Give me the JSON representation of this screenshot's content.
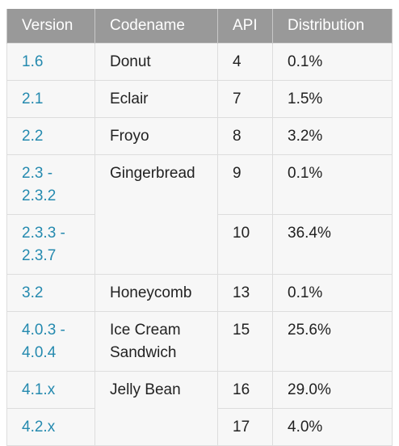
{
  "headers": {
    "version": "Version",
    "codename": "Codename",
    "api": "API",
    "distribution": "Distribution"
  },
  "rows": [
    {
      "version": "1.6",
      "codename": "Donut",
      "api": "4",
      "distribution": "0.1%"
    },
    {
      "version": "2.1",
      "codename": "Eclair",
      "api": "7",
      "distribution": "1.5%"
    },
    {
      "version": "2.2",
      "codename": "Froyo",
      "api": "8",
      "distribution": "3.2%"
    },
    {
      "version": "2.3 - 2.3.2",
      "codename": "Gingerbread",
      "api": "9",
      "distribution": "0.1%"
    },
    {
      "version": "2.3.3 - 2.3.7",
      "codename": "",
      "api": "10",
      "distribution": "36.4%"
    },
    {
      "version": "3.2",
      "codename": "Honeycomb",
      "api": "13",
      "distribution": "0.1%"
    },
    {
      "version": "4.0.3 - 4.0.4",
      "codename": "Ice Cream Sandwich",
      "api": "15",
      "distribution": "25.6%"
    },
    {
      "version": "4.1.x",
      "codename": "Jelly Bean",
      "api": "16",
      "distribution": "29.0%"
    },
    {
      "version": "4.2.x",
      "codename": "",
      "api": "17",
      "distribution": "4.0%"
    }
  ],
  "colors": {
    "header_bg": "#999999",
    "version_link": "#258aaf",
    "cell_bg": "#f7f7f7",
    "border": "#dddddd"
  }
}
